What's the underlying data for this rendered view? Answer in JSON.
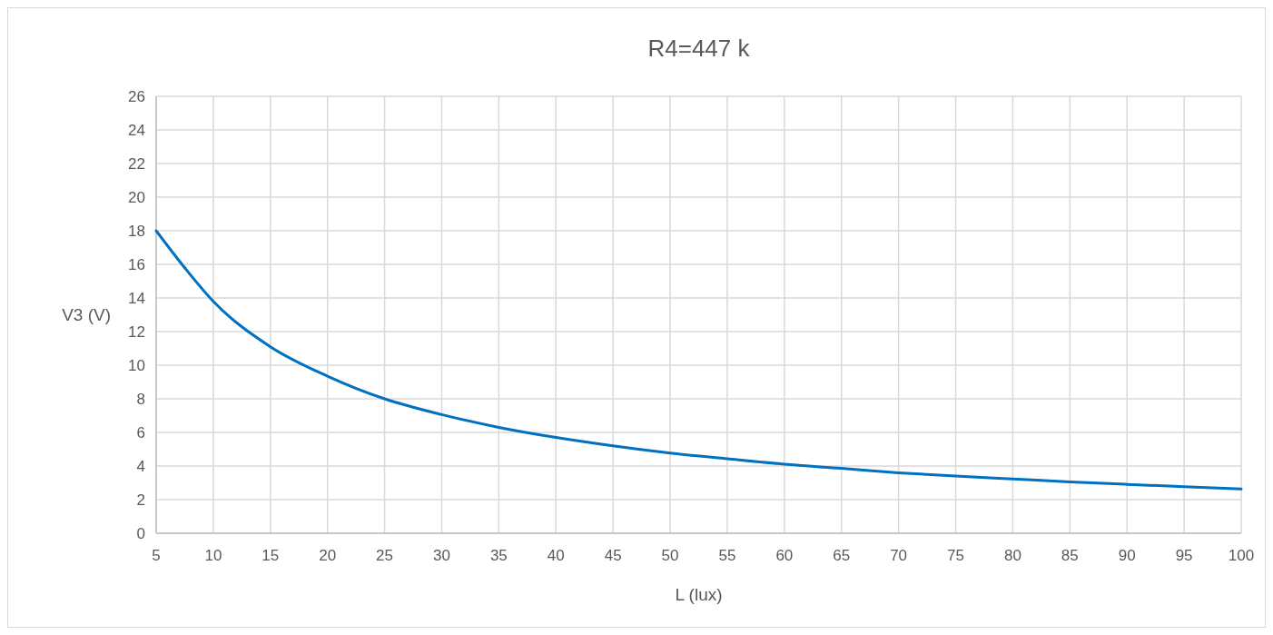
{
  "chart_data": {
    "type": "line",
    "title": "R4=447 k",
    "xlabel": "L (lux)",
    "ylabel": "V3 (V)",
    "x": [
      5,
      7.5,
      10,
      15,
      20,
      25,
      30,
      35,
      40,
      45,
      50,
      55,
      60,
      65,
      70,
      75,
      80,
      85,
      90,
      95,
      100
    ],
    "series": [
      {
        "color": "#0070c0",
        "values": [
          18,
          15.8,
          13.8,
          11.1,
          9.35,
          8.0,
          7.06,
          6.3,
          5.7,
          5.2,
          4.77,
          4.43,
          4.11,
          3.86,
          3.6,
          3.4,
          3.23,
          3.06,
          2.91,
          2.77,
          2.63
        ]
      }
    ],
    "xlim": [
      5,
      100
    ],
    "xticks": [
      5,
      10,
      15,
      20,
      25,
      30,
      35,
      40,
      45,
      50,
      55,
      60,
      65,
      70,
      75,
      80,
      85,
      90,
      95,
      100
    ],
    "ylim": [
      0,
      26
    ],
    "yticks": [
      0,
      2,
      4,
      6,
      8,
      10,
      12,
      14,
      16,
      18,
      20,
      22,
      24,
      26
    ],
    "grid": true,
    "marker": "none",
    "line_style": "solid"
  }
}
